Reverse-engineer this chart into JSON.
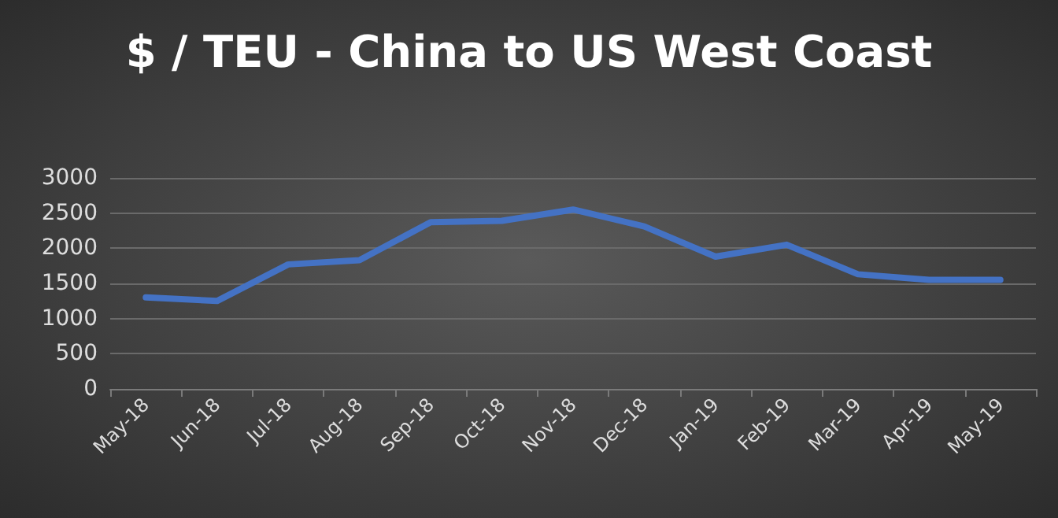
{
  "chart_data": {
    "type": "line",
    "title": "$ / TEU - China to US West Coast",
    "categories": [
      "May-18",
      "Jun-18",
      "Jul-18",
      "Aug-18",
      "Sep-18",
      "Oct-18",
      "Nov-18",
      "Dec-18",
      "Jan-19",
      "Feb-19",
      "Mar-19",
      "Apr-19",
      "May-19"
    ],
    "series": [
      {
        "color": "#4472c4",
        "values": [
          1300,
          1250,
          1770,
          1830,
          2370,
          2390,
          2550,
          2310,
          1880,
          2050,
          1630,
          1550,
          1550
        ]
      }
    ],
    "ylim": [
      0,
      3000
    ],
    "yticks": [
      0,
      500,
      1000,
      1500,
      2000,
      2500,
      3000
    ],
    "grid": "y",
    "marker": "none",
    "line_style": "solid"
  }
}
